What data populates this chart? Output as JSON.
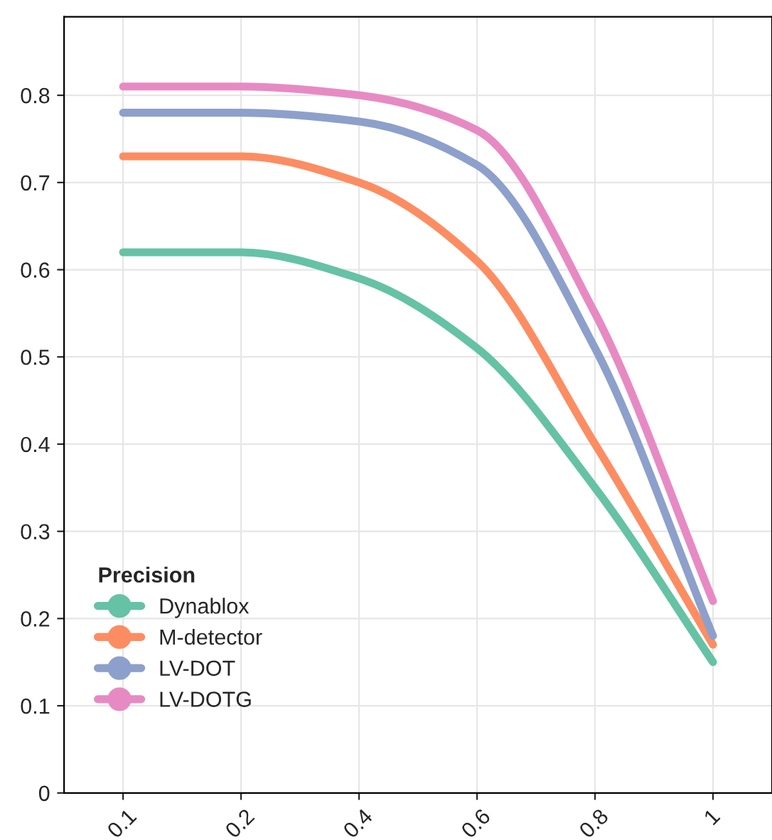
{
  "chart_data": {
    "type": "line",
    "categories": [
      "0.1",
      "0.2",
      "0.4",
      "0.6",
      "0.8",
      "1"
    ],
    "series": [
      {
        "name": "Dynablox",
        "color": "#66c2a5",
        "values": [
          0.62,
          0.62,
          0.59,
          0.51,
          0.35,
          0.15
        ]
      },
      {
        "name": "M-detector",
        "color": "#fc8d62",
        "values": [
          0.73,
          0.73,
          0.7,
          0.61,
          0.4,
          0.17
        ]
      },
      {
        "name": "LV-DOT",
        "color": "#8da0cb",
        "values": [
          0.78,
          0.78,
          0.77,
          0.72,
          0.51,
          0.18
        ]
      },
      {
        "name": "LV-DOTG",
        "color": "#e78ac3",
        "values": [
          0.81,
          0.81,
          0.8,
          0.76,
          0.55,
          0.22
        ]
      }
    ],
    "ylim": [
      0,
      0.89
    ],
    "yticks": [
      0,
      0.1,
      0.2,
      0.3,
      0.4,
      0.5,
      0.6,
      0.7,
      0.8
    ],
    "grid": true,
    "legend": "bottom left",
    "legend_title": "Precision",
    "marker": "none",
    "line_style": "solid"
  }
}
